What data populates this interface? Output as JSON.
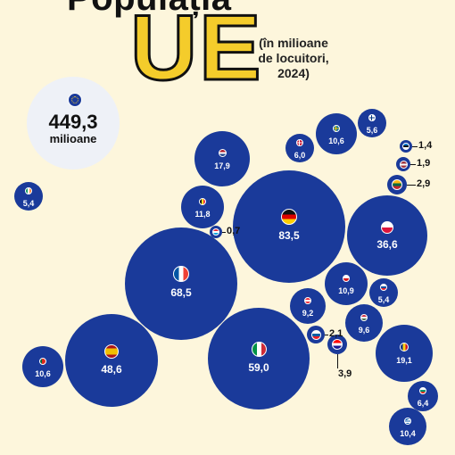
{
  "header": {
    "title_top": "Populația",
    "title_main": "UE",
    "subtitle_lines": [
      "(în milioane",
      "de locuitori,",
      "2024)"
    ]
  },
  "total": {
    "value": "449,3",
    "unit": "milioane"
  },
  "countries": [
    {
      "id": "de",
      "label": "83,5",
      "flag": "germany-flag-icon",
      "stripes": [
        "#111111",
        "#dd0000",
        "#ffce00"
      ],
      "dir": "h"
    },
    {
      "id": "fr",
      "label": "68,5",
      "flag": "france-flag-icon",
      "stripes": [
        "#0055a4",
        "#ffffff",
        "#ef4135"
      ],
      "dir": "v"
    },
    {
      "id": "it",
      "label": "59,0",
      "flag": "italy-flag-icon",
      "stripes": [
        "#009246",
        "#ffffff",
        "#ce2b37"
      ],
      "dir": "v"
    },
    {
      "id": "es",
      "label": "48,6",
      "flag": "spain-flag-icon",
      "stripes": [
        "#aa151b",
        "#f1bf00",
        "#f1bf00",
        "#aa151b"
      ],
      "dir": "h"
    },
    {
      "id": "pl",
      "label": "36,6",
      "flag": "poland-flag-icon",
      "stripes": [
        "#ffffff",
        "#dc143c"
      ],
      "dir": "h"
    },
    {
      "id": "ro",
      "label": "19,1",
      "flag": "romania-flag-icon",
      "stripes": [
        "#002b7f",
        "#fcd116",
        "#ce1126"
      ],
      "dir": "v"
    },
    {
      "id": "nl",
      "label": "17,9",
      "flag": "netherlands-flag-icon",
      "stripes": [
        "#ae1c28",
        "#ffffff",
        "#21468b"
      ],
      "dir": "h"
    },
    {
      "id": "be",
      "label": "11,8",
      "flag": "belgium-flag-icon",
      "stripes": [
        "#111111",
        "#fdda24",
        "#ef3340"
      ],
      "dir": "v"
    },
    {
      "id": "cz",
      "label": "10,9",
      "flag": "czechia-flag-icon",
      "stripes": [
        "#ffffff",
        "#d7141a"
      ],
      "dir": "h"
    },
    {
      "id": "se",
      "label": "10,6",
      "flag": "sweden-flag-icon",
      "stripes": [
        "#006aa7"
      ],
      "dir": "h"
    },
    {
      "id": "pt",
      "label": "10,6",
      "flag": "portugal-flag-icon",
      "stripes": [
        "#046a38",
        "#da291c",
        "#da291c"
      ],
      "dir": "v"
    },
    {
      "id": "gr",
      "label": "10,4",
      "flag": "greece-flag-icon",
      "stripes": [
        "#0d5eaf",
        "#ffffff",
        "#0d5eaf",
        "#ffffff",
        "#0d5eaf"
      ],
      "dir": "h"
    },
    {
      "id": "hu",
      "label": "9,6",
      "flag": "hungary-flag-icon",
      "stripes": [
        "#cd2a3e",
        "#ffffff",
        "#436f4d"
      ],
      "dir": "h"
    },
    {
      "id": "at",
      "label": "9,2",
      "flag": "austria-flag-icon",
      "stripes": [
        "#ed2939",
        "#ffffff",
        "#ed2939"
      ],
      "dir": "h"
    },
    {
      "id": "bg",
      "label": "6,4",
      "flag": "bulgaria-flag-icon",
      "stripes": [
        "#ffffff",
        "#00966e",
        "#d62612"
      ],
      "dir": "h"
    },
    {
      "id": "dk",
      "label": "6,0",
      "flag": "denmark-flag-icon",
      "stripes": [
        "#c8102e"
      ],
      "dir": "h"
    },
    {
      "id": "fi",
      "label": "5,6",
      "flag": "finland-flag-icon",
      "stripes": [
        "#ffffff"
      ],
      "dir": "h"
    },
    {
      "id": "sk",
      "label": "5,4",
      "flag": "slovakia-flag-icon",
      "stripes": [
        "#ffffff",
        "#0b4ea2",
        "#ee1c25"
      ],
      "dir": "h"
    },
    {
      "id": "ie",
      "label": "5,4",
      "flag": "ireland-flag-icon",
      "stripes": [
        "#169b62",
        "#ffffff",
        "#ff883e"
      ],
      "dir": "v"
    },
    {
      "id": "hr",
      "label": "3,9",
      "flag": "croatia-flag-icon",
      "stripes": [
        "#ff0000",
        "#ffffff",
        "#171796"
      ],
      "dir": "h"
    },
    {
      "id": "lt",
      "label": "2,9",
      "flag": "lithuania-flag-icon",
      "stripes": [
        "#fdb913",
        "#006a44",
        "#c1272d"
      ],
      "dir": "h"
    },
    {
      "id": "si",
      "label": "2,1",
      "flag": "slovenia-flag-icon",
      "stripes": [
        "#ffffff",
        "#005da4",
        "#ed1c24"
      ],
      "dir": "h"
    },
    {
      "id": "lv",
      "label": "1,9",
      "flag": "latvia-flag-icon",
      "stripes": [
        "#9e3039",
        "#ffffff",
        "#9e3039"
      ],
      "dir": "h"
    },
    {
      "id": "ee",
      "label": "1,4",
      "flag": "estonia-flag-icon",
      "stripes": [
        "#0072ce",
        "#111111",
        "#ffffff"
      ],
      "dir": "h"
    },
    {
      "id": "lu",
      "label": "0,7",
      "flag": "luxembourg-flag-icon",
      "stripes": [
        "#ed2939",
        "#ffffff",
        "#00a1de"
      ],
      "dir": "h"
    }
  ]
}
